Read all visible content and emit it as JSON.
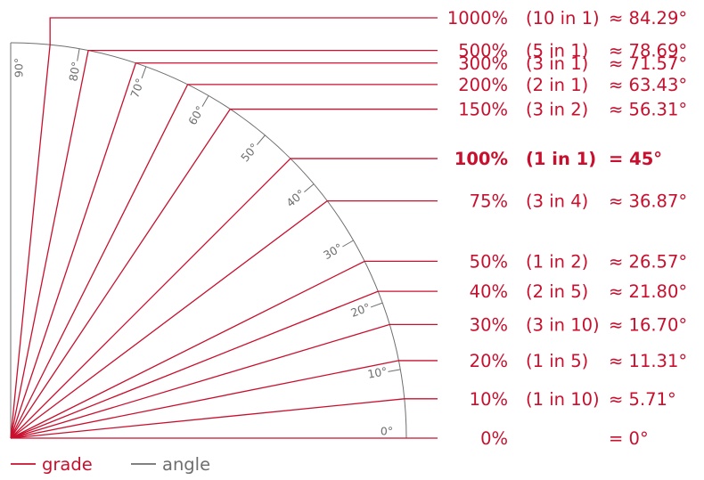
{
  "chart_data": {
    "type": "diagram",
    "angle_labels": [
      "0°",
      "10°",
      "20°",
      "30°",
      "40°",
      "50°",
      "60°",
      "70°",
      "80°",
      "90°"
    ],
    "grades": [
      {
        "percent": "1000%",
        "ratio": "(10 in 1)",
        "degrees": "≈ 84.29°",
        "angle": 84.29,
        "bold": false
      },
      {
        "percent": "500%",
        "ratio": "(5 in 1)",
        "degrees": "≈ 78.69°",
        "angle": 78.69,
        "bold": false
      },
      {
        "percent": "300%",
        "ratio": "(3 in 1)",
        "degrees": "≈ 71.57°",
        "angle": 71.57,
        "bold": false
      },
      {
        "percent": "200%",
        "ratio": "(2 in 1)",
        "degrees": "≈ 63.43°",
        "angle": 63.43,
        "bold": false
      },
      {
        "percent": "150%",
        "ratio": "(3 in 2)",
        "degrees": "≈ 56.31°",
        "angle": 56.31,
        "bold": false
      },
      {
        "percent": "100%",
        "ratio": "(1 in 1)",
        "degrees": "= 45°",
        "angle": 45,
        "bold": true
      },
      {
        "percent": "75%",
        "ratio": "(3 in 4)",
        "degrees": "≈ 36.87°",
        "angle": 36.87,
        "bold": false
      },
      {
        "percent": "50%",
        "ratio": "(1 in 2)",
        "degrees": "≈ 26.57°",
        "angle": 26.57,
        "bold": false
      },
      {
        "percent": "40%",
        "ratio": "(2 in 5)",
        "degrees": "≈ 21.80°",
        "angle": 21.8,
        "bold": false
      },
      {
        "percent": "30%",
        "ratio": "(3 in 10)",
        "degrees": "≈ 16.70°",
        "angle": 16.7,
        "bold": false
      },
      {
        "percent": "20%",
        "ratio": "(1 in 5)",
        "degrees": "≈ 11.31°",
        "angle": 11.31,
        "bold": false
      },
      {
        "percent": "10%",
        "ratio": "(1 in 10)",
        "degrees": "≈ 5.71°",
        "angle": 5.71,
        "bold": false
      },
      {
        "percent": "0%",
        "ratio": "",
        "degrees": "= 0°",
        "angle": 0,
        "bold": false
      }
    ],
    "legend": [
      {
        "label": "grade",
        "color": "#c8102e"
      },
      {
        "label": "angle",
        "color": "#6e6e6e"
      }
    ]
  },
  "colors": {
    "grade": "#c8102e",
    "angle": "#6e6e6e"
  }
}
